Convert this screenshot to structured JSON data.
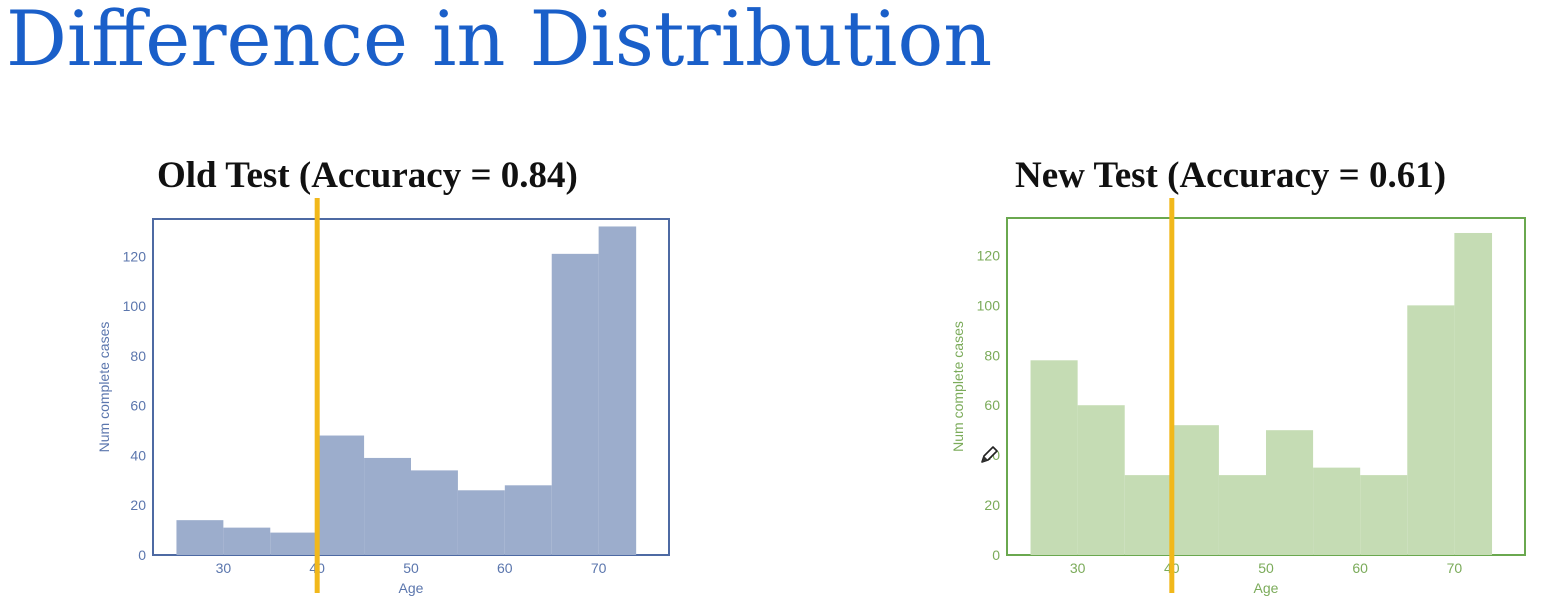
{
  "title": "Difference in Distribution",
  "chart_data": [
    {
      "type": "bar",
      "title": "Old Test  (Accuracy = 0.84)",
      "xlabel": "Age",
      "ylabel": "Num complete cases",
      "bin_edges": [
        25,
        30,
        35,
        40,
        45,
        50,
        55,
        60,
        65,
        70,
        74
      ],
      "values": [
        14,
        11,
        9,
        48,
        39,
        34,
        26,
        28,
        121,
        132
      ],
      "xlim": [
        22.5,
        77.5
      ],
      "ylim": [
        0,
        135
      ],
      "x_ticks": [
        30,
        40,
        50,
        60,
        70
      ],
      "y_ticks": [
        0,
        20,
        40,
        60,
        80,
        100,
        120
      ],
      "threshold_line_x": 40,
      "grid": false,
      "colors": {
        "bar": "#9cadcc",
        "axis": "#5b76ad",
        "frame": "#4e6aa3",
        "threshold": "#f1b81b"
      }
    },
    {
      "type": "bar",
      "title": "New Test (Accuracy = 0.61)",
      "xlabel": "Age",
      "ylabel": "Num complete cases",
      "bin_edges": [
        25,
        30,
        35,
        40,
        45,
        50,
        55,
        60,
        65,
        70,
        74
      ],
      "values": [
        78,
        60,
        32,
        52,
        32,
        50,
        35,
        32,
        100,
        129
      ],
      "xlim": [
        22.5,
        77.5
      ],
      "ylim": [
        0,
        135
      ],
      "x_ticks": [
        30,
        40,
        50,
        60,
        70
      ],
      "y_ticks": [
        0,
        20,
        40,
        60,
        80,
        100,
        120
      ],
      "threshold_line_x": 40,
      "grid": false,
      "colors": {
        "bar": "#c5dcb4",
        "axis": "#7bab5a",
        "frame": "#6aa84f",
        "threshold": "#f1b81b"
      }
    }
  ],
  "icons": {
    "cursor": "pen-cursor-icon"
  }
}
